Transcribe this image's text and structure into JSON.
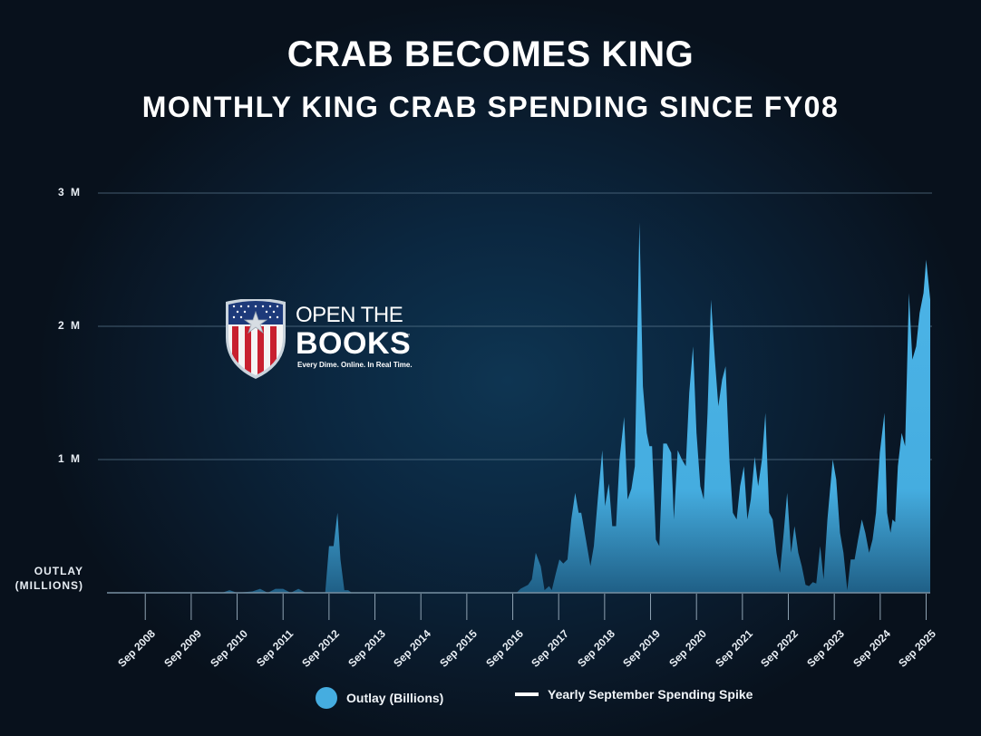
{
  "header": {
    "title": "CRAB BECOMES KING",
    "subtitle": "MONTHLY KING CRAB SPENDING SINCE FY08"
  },
  "logo": {
    "line1": "OPEN THE",
    "line2": "BOOKS",
    "trademark": "™",
    "tagline": "Every Dime. Online. In Real Time."
  },
  "legend": {
    "series_label": "Outlay (Billions)",
    "marker_label": "Yearly September Spending Spike"
  },
  "colors": {
    "area": "#45ade0",
    "area_bottom": "#1f5f86",
    "grid": "#5d7a90",
    "text": "#ffffff"
  },
  "chart_data": {
    "type": "area",
    "title": "CRAB BECOMES KING",
    "subtitle": "MONTHLY KING CRAB SPENDING SINCE FY08",
    "xlabel": "",
    "ylabel": "OUTLAY (MILLIONS)",
    "ylabel_lines": [
      "OUTLAY",
      "(MILLIONS)"
    ],
    "y_ticks": [
      {
        "value": 1,
        "label": "1 M"
      },
      {
        "value": 2,
        "label": "2 M"
      },
      {
        "value": 3,
        "label": "3 M"
      }
    ],
    "ylim": [
      0,
      3
    ],
    "grid": true,
    "legend_position": "bottom",
    "x_ticks": [
      "Sep 2008",
      "Sep 2009",
      "Sep 2010",
      "Sep 2011",
      "Sep 2012",
      "Sep 2013",
      "Sep 2014",
      "Sep 2015",
      "Sep 2016",
      "Sep 2017",
      "Sep 2018",
      "Sep 2019",
      "Sep 2020",
      "Sep 2021",
      "Sep 2022",
      "Sep 2023",
      "Sep 2024",
      "Sep 2025"
    ],
    "x_origin": "Nov 2007 = month 0; Sep 2008 = month 10",
    "series": [
      {
        "name": "Outlay (Billions)",
        "points_month_value": [
          [
            0,
            0
          ],
          [
            30,
            0
          ],
          [
            32,
            0.02
          ],
          [
            34,
            0
          ],
          [
            38,
            0.01
          ],
          [
            40,
            0.03
          ],
          [
            42,
            0
          ],
          [
            44,
            0.03
          ],
          [
            46,
            0.03
          ],
          [
            48,
            0
          ],
          [
            50,
            0.03
          ],
          [
            52,
            0
          ],
          [
            57,
            0
          ],
          [
            58,
            0.35
          ],
          [
            59.2,
            0.35
          ],
          [
            60.2,
            0.6
          ],
          [
            61,
            0.25
          ],
          [
            62,
            0.02
          ],
          [
            63,
            0.02
          ],
          [
            64,
            0
          ],
          [
            107,
            0
          ],
          [
            108,
            0.03
          ],
          [
            110,
            0.06
          ],
          [
            111,
            0.1
          ],
          [
            112,
            0.3
          ],
          [
            113.3,
            0.2
          ],
          [
            114.3,
            0.02
          ],
          [
            115.5,
            0.05
          ],
          [
            116.2,
            0.02
          ],
          [
            117.3,
            0.15
          ],
          [
            118.2,
            0.25
          ],
          [
            119.2,
            0.22
          ],
          [
            120.3,
            0.25
          ],
          [
            121.3,
            0.55
          ],
          [
            122.3,
            0.75
          ],
          [
            123.2,
            0.6
          ],
          [
            123.9,
            0.6
          ],
          [
            125.1,
            0.4
          ],
          [
            126.3,
            0.2
          ],
          [
            127.2,
            0.35
          ],
          [
            128.2,
            0.7
          ],
          [
            129.4,
            1.07
          ],
          [
            130.1,
            0.65
          ],
          [
            131.1,
            0.82
          ],
          [
            132,
            0.5
          ],
          [
            133,
            0.5
          ],
          [
            133.9,
            1.0
          ],
          [
            135.1,
            1.32
          ],
          [
            136,
            0.7
          ],
          [
            137,
            0.78
          ],
          [
            137.9,
            0.95
          ],
          [
            139.1,
            2.78
          ],
          [
            140,
            1.55
          ],
          [
            141,
            1.2
          ],
          [
            141.7,
            1.1
          ],
          [
            142.4,
            1.1
          ],
          [
            143.4,
            0.4
          ],
          [
            144.3,
            0.35
          ],
          [
            145.3,
            1.12
          ],
          [
            146.2,
            1.12
          ],
          [
            147.4,
            1.05
          ],
          [
            148.1,
            0.55
          ],
          [
            149.1,
            1.07
          ],
          [
            150.2,
            1.0
          ],
          [
            151.2,
            0.95
          ],
          [
            152.1,
            1.5
          ],
          [
            153.1,
            1.85
          ],
          [
            154,
            1.2
          ],
          [
            155,
            0.8
          ],
          [
            155.9,
            0.7
          ],
          [
            156.9,
            1.35
          ],
          [
            157.8,
            2.2
          ],
          [
            158.8,
            1.75
          ],
          [
            159.7,
            1.4
          ],
          [
            160.7,
            1.6
          ],
          [
            161.6,
            1.7
          ],
          [
            162.6,
            1.0
          ],
          [
            163.5,
            0.6
          ],
          [
            164.5,
            0.55
          ],
          [
            165.4,
            0.8
          ],
          [
            166.4,
            0.95
          ],
          [
            167.3,
            0.55
          ],
          [
            168.2,
            0.7
          ],
          [
            169.2,
            1.02
          ],
          [
            170.1,
            0.8
          ],
          [
            171.1,
            1.0
          ],
          [
            172,
            1.35
          ],
          [
            173,
            0.6
          ],
          [
            173.9,
            0.55
          ],
          [
            174.9,
            0.3
          ],
          [
            175.8,
            0.15
          ],
          [
            176.8,
            0.45
          ],
          [
            177.7,
            0.75
          ],
          [
            178.7,
            0.3
          ],
          [
            179.6,
            0.5
          ],
          [
            180.6,
            0.3
          ],
          [
            181.5,
            0.2
          ],
          [
            182.5,
            0.06
          ],
          [
            183.4,
            0.05
          ],
          [
            184.4,
            0.08
          ],
          [
            185.3,
            0.07
          ],
          [
            186.3,
            0.35
          ],
          [
            187.2,
            0.1
          ],
          [
            188.2,
            0.55
          ],
          [
            189.6,
            1.0
          ],
          [
            190.5,
            0.85
          ],
          [
            191.5,
            0.45
          ],
          [
            192.4,
            0.3
          ],
          [
            193.4,
            0.02
          ],
          [
            194.3,
            0.25
          ],
          [
            195.3,
            0.25
          ],
          [
            196.2,
            0.4
          ],
          [
            197.2,
            0.55
          ],
          [
            198.1,
            0.45
          ],
          [
            199.1,
            0.3
          ],
          [
            200,
            0.4
          ],
          [
            200.9,
            0.6
          ],
          [
            201.9,
            1.05
          ],
          [
            203.1,
            1.35
          ],
          [
            203.8,
            0.6
          ],
          [
            204.7,
            0.45
          ],
          [
            205.2,
            0.55
          ],
          [
            205.9,
            0.53
          ],
          [
            206.6,
            0.95
          ],
          [
            207.6,
            1.2
          ],
          [
            208.5,
            1.1
          ],
          [
            209.5,
            2.25
          ],
          [
            210.4,
            1.75
          ],
          [
            211.4,
            1.85
          ],
          [
            212.3,
            2.1
          ],
          [
            213.3,
            2.25
          ],
          [
            214,
            2.5
          ],
          [
            215.2,
            2.2
          ]
        ]
      }
    ],
    "annotations": [
      "Yearly September Spending Spike markers at each Sep tick"
    ]
  }
}
